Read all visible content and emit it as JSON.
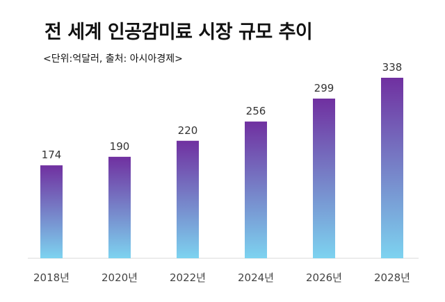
{
  "chart_data": {
    "type": "bar",
    "title": "전 세계 인공감미료 시장 규모 추이",
    "subtitle": "<단위:억달러, 출처: 아시아경제>",
    "categories": [
      "2018년",
      "2020년",
      "2022년",
      "2024년",
      "2026년",
      "2028년"
    ],
    "values": [
      174,
      190,
      220,
      256,
      299,
      338
    ],
    "xlabel": "",
    "ylabel": "",
    "ylim": [
      0,
      338
    ],
    "grid": false,
    "legend": "none",
    "colors": {
      "bar_top": "#7030A0",
      "bar_bottom": "#7DD3F0",
      "baseline": "#D9D9D9"
    }
  }
}
